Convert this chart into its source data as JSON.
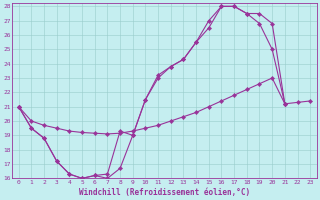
{
  "xlabel": "Windchill (Refroidissement éolien,°C)",
  "background_color": "#c5eef0",
  "line_color": "#993399",
  "grid_color": "#99cccc",
  "xlim": [
    -0.5,
    23.5
  ],
  "ylim": [
    16,
    28.2
  ],
  "yticks": [
    16,
    17,
    18,
    19,
    20,
    21,
    22,
    23,
    24,
    25,
    26,
    27,
    28
  ],
  "xticks": [
    0,
    1,
    2,
    3,
    4,
    5,
    6,
    7,
    8,
    9,
    10,
    11,
    12,
    13,
    14,
    15,
    16,
    17,
    18,
    19,
    20,
    21,
    22,
    23
  ],
  "c1x": [
    0,
    1,
    2,
    3,
    4,
    5,
    6,
    7,
    8,
    9,
    10,
    11,
    12,
    13,
    14,
    15,
    16,
    17,
    18,
    19,
    20,
    21
  ],
  "c1y": [
    21.0,
    19.5,
    18.8,
    17.2,
    16.3,
    16.0,
    16.2,
    16.3,
    19.3,
    19.0,
    21.5,
    23.2,
    23.8,
    24.3,
    25.5,
    26.5,
    28.0,
    28.0,
    27.5,
    26.8,
    25.0,
    21.2
  ],
  "c2x": [
    0,
    1,
    2,
    3,
    4,
    5,
    6,
    7,
    8,
    9,
    10,
    11,
    12,
    13,
    14,
    15,
    16,
    17,
    18,
    19,
    20,
    21,
    22,
    23
  ],
  "c2y": [
    21.0,
    20.0,
    19.7,
    19.5,
    19.3,
    19.2,
    19.15,
    19.1,
    19.15,
    19.3,
    19.5,
    19.7,
    20.0,
    20.3,
    20.6,
    21.0,
    21.4,
    21.8,
    22.2,
    22.6,
    23.0,
    21.2,
    21.3,
    21.4
  ],
  "c3x": [
    0,
    1,
    2,
    3,
    4,
    5,
    6,
    7,
    8,
    9,
    10,
    11,
    12,
    13,
    14,
    15,
    16,
    17,
    18,
    19,
    20,
    21,
    22,
    23
  ],
  "c3y": [
    21.0,
    19.5,
    18.8,
    17.2,
    16.3,
    16.0,
    16.2,
    16.0,
    16.7,
    19.0,
    21.5,
    23.0,
    23.8,
    24.3,
    25.5,
    27.0,
    28.0,
    28.0,
    27.5,
    27.5,
    26.8,
    21.2,
    null,
    null
  ]
}
